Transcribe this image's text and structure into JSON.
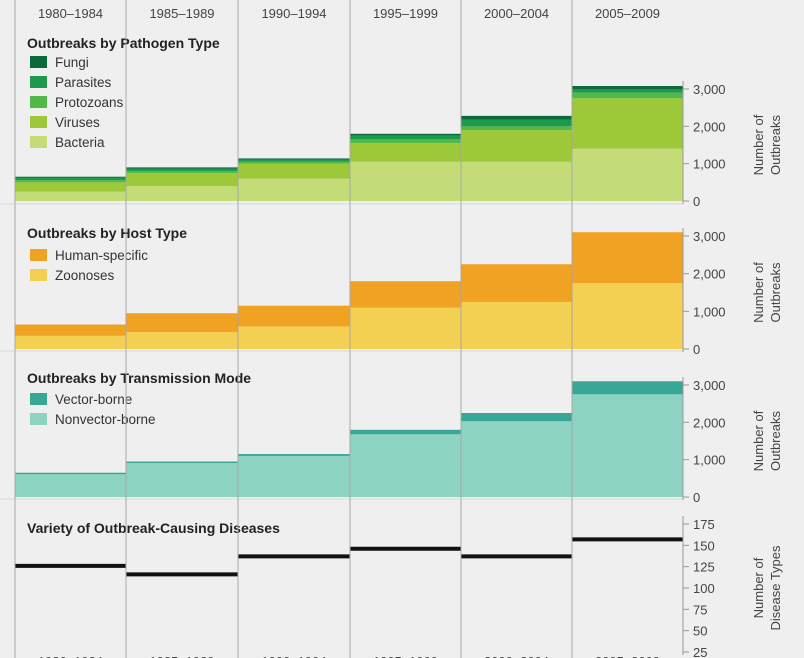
{
  "chart_data": [
    {
      "type": "bar",
      "stacked": true,
      "title": "Outbreaks by Pathogen Type",
      "categories": [
        "1980–1984",
        "1985–1989",
        "1990–1994",
        "1995–1999",
        "2000–2004",
        "2005–2009"
      ],
      "ylabel": "Number of Outbreaks",
      "ylim": [
        0,
        3000
      ],
      "yticks": [
        "0",
        "1,000",
        "2,000",
        "3,000"
      ],
      "legend_position": "top-left",
      "series": [
        {
          "name": "Bacteria",
          "color": "#c3dc78",
          "values": [
            250,
            400,
            600,
            1050,
            1050,
            1400
          ]
        },
        {
          "name": "Viruses",
          "color": "#9dc83a",
          "values": [
            250,
            350,
            400,
            500,
            850,
            1350
          ]
        },
        {
          "name": "Protozoans",
          "color": "#52b848",
          "values": [
            60,
            50,
            50,
            100,
            100,
            150
          ]
        },
        {
          "name": "Parasites",
          "color": "#1d9a4c",
          "values": [
            60,
            70,
            60,
            100,
            180,
            100
          ]
        },
        {
          "name": "Fungi",
          "color": "#0c6a3a",
          "values": [
            30,
            30,
            30,
            50,
            100,
            80
          ]
        }
      ]
    },
    {
      "type": "bar",
      "stacked": true,
      "title": "Outbreaks by Host Type",
      "categories": [
        "1980–1984",
        "1985–1989",
        "1990–1994",
        "1995–1999",
        "2000–2004",
        "2005–2009"
      ],
      "ylabel": "Number of Outbreaks",
      "ylim": [
        0,
        3000
      ],
      "yticks": [
        "0",
        "1,000",
        "2,000",
        "3,000"
      ],
      "legend_position": "top-left",
      "series": [
        {
          "name": "Zoonoses",
          "color": "#f3cf52",
          "values": [
            350,
            450,
            600,
            1100,
            1250,
            1750
          ]
        },
        {
          "name": "Human-specific",
          "color": "#f0a223",
          "values": [
            300,
            500,
            550,
            700,
            1000,
            1350
          ]
        }
      ]
    },
    {
      "type": "bar",
      "stacked": true,
      "title": "Outbreaks by Transmission Mode",
      "categories": [
        "1980–1984",
        "1985–1989",
        "1990–1994",
        "1995–1999",
        "2000–2004",
        "2005–2009"
      ],
      "ylabel": "Number of Outbreaks",
      "ylim": [
        0,
        3000
      ],
      "yticks": [
        "0",
        "1,000",
        "2,000",
        "3,000"
      ],
      "legend_position": "top-left",
      "series": [
        {
          "name": "Nonvector-borne",
          "color": "#8dd3c2",
          "values": [
            610,
            910,
            1100,
            1680,
            2030,
            2750
          ]
        },
        {
          "name": "Vector-borne",
          "color": "#38a796",
          "values": [
            40,
            40,
            50,
            120,
            220,
            350
          ]
        }
      ]
    },
    {
      "type": "line",
      "title": "Variety of Outbreak-Causing Diseases",
      "categories": [
        "1980–1984",
        "1985–1989",
        "1990–1994",
        "1995–1999",
        "2000–2004",
        "2005–2009"
      ],
      "ylabel": "Number of Disease Types",
      "ylim": [
        25,
        175
      ],
      "yticks": [
        "25",
        "50",
        "75",
        "100",
        "125",
        "150",
        "175"
      ],
      "series": [
        {
          "name": "Disease types",
          "color": "#111111",
          "values": [
            126,
            116,
            137,
            146,
            137,
            157
          ]
        }
      ]
    }
  ],
  "legend_order": [
    [
      "Fungi",
      "Parasites",
      "Protozoans",
      "Viruses",
      "Bacteria"
    ],
    [
      "Human-specific",
      "Zoonoses"
    ],
    [
      "Vector-borne",
      "Nonvector-borne"
    ],
    []
  ],
  "ylabel_lines": [
    [
      "Number of",
      "Outbreaks"
    ],
    [
      "Number of",
      "Outbreaks"
    ],
    [
      "Number of",
      "Outbreaks"
    ],
    [
      "Number of",
      "Disease Types"
    ]
  ]
}
